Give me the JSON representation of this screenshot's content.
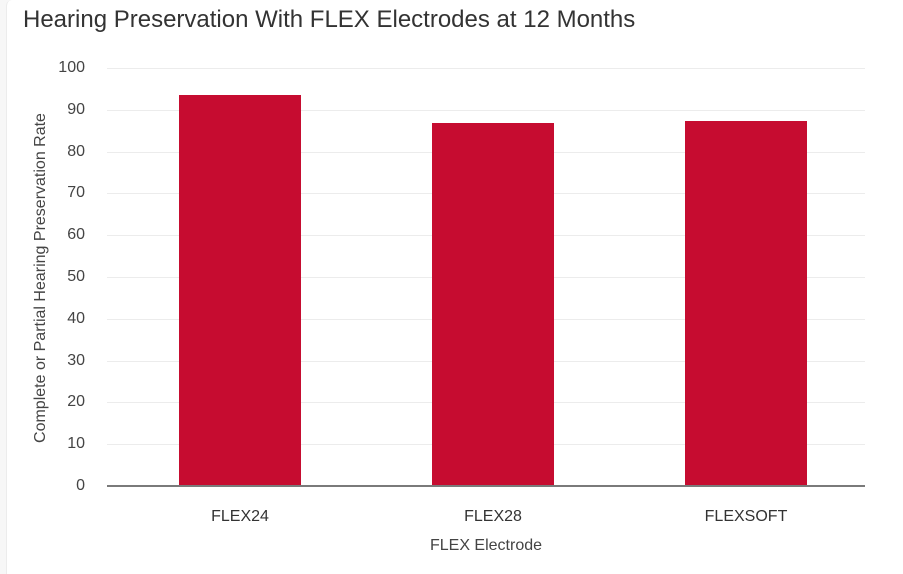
{
  "chart_data": {
    "type": "bar",
    "title": "Hearing Preservation With FLEX Electrodes at 12 Months",
    "xlabel": "FLEX Electrode",
    "ylabel": "Complete or Partial Hearing Preservation Rate",
    "categories": [
      "FLEX24",
      "FLEX28",
      "FLEXSOFT"
    ],
    "values": [
      93.5,
      86.8,
      87.3
    ],
    "ylim": [
      0,
      100
    ],
    "yticks": [
      0,
      10,
      20,
      30,
      40,
      50,
      60,
      70,
      80,
      90,
      100
    ],
    "grid": true,
    "legend": null,
    "bar_color": "#c60c30"
  },
  "yticks_labels": [
    "100",
    "90",
    "80",
    "70",
    "60",
    "50",
    "40",
    "30",
    "20",
    "10",
    "0"
  ]
}
